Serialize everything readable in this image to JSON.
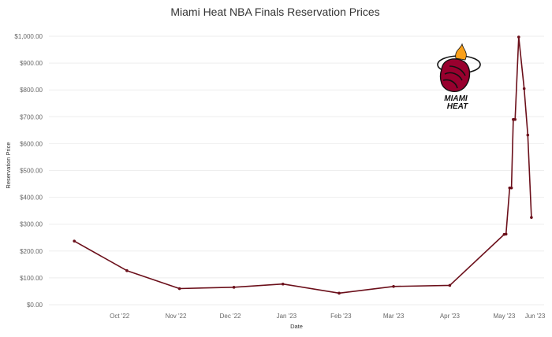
{
  "chart_data": {
    "type": "line",
    "title": "Miami Heat NBA Finals Reservation Prices",
    "xlabel": "Date",
    "ylabel": "Reservation Price",
    "x_ticks": [
      "Oct '22",
      "Nov '22",
      "Dec '22",
      "Jan '23",
      "Feb '23",
      "Mar '23",
      "Apr '23",
      "May '23",
      "Jun '23"
    ],
    "y_ticks": [
      "$0.00",
      "$100.00",
      "$200.00",
      "$300.00",
      "$400.00",
      "$500.00",
      "$600.00",
      "$700.00",
      "$800.00",
      "$900.00",
      "$1,000.00"
    ],
    "ylim": [
      0,
      1000
    ],
    "xlim": [
      "2022-09-06",
      "2023-06-06"
    ],
    "grid": true,
    "series": [
      {
        "color": "#6b0f1a",
        "points": [
          {
            "x": "2022-09-20",
            "y": 237
          },
          {
            "x": "2022-10-19",
            "y": 127
          },
          {
            "x": "2022-11-17",
            "y": 60
          },
          {
            "x": "2022-12-17",
            "y": 65
          },
          {
            "x": "2023-01-13",
            "y": 77
          },
          {
            "x": "2023-02-13",
            "y": 43
          },
          {
            "x": "2023-03-15",
            "y": 68
          },
          {
            "x": "2023-04-15",
            "y": 72
          },
          {
            "x": "2023-05-15",
            "y": 262
          },
          {
            "x": "2023-05-16",
            "y": 263
          },
          {
            "x": "2023-05-18",
            "y": 435
          },
          {
            "x": "2023-05-19",
            "y": 435
          },
          {
            "x": "2023-05-20",
            "y": 690
          },
          {
            "x": "2023-05-21",
            "y": 690
          },
          {
            "x": "2023-05-23",
            "y": 997
          },
          {
            "x": "2023-05-26",
            "y": 805
          },
          {
            "x": "2023-05-28",
            "y": 632
          },
          {
            "x": "2023-05-30",
            "y": 325
          }
        ]
      }
    ]
  },
  "logo": {
    "text_line1": "MIAMI",
    "text_line2": "HEAT",
    "ball_color": "#98002e",
    "flame_color": "#f9a01b"
  }
}
